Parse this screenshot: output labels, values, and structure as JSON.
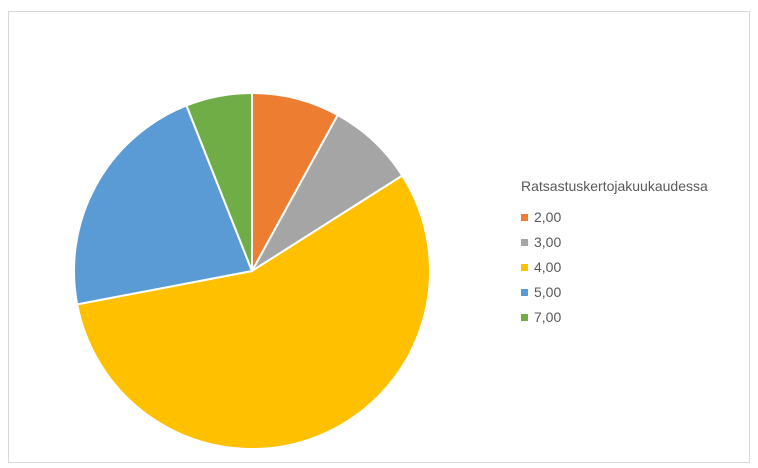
{
  "chart_data": {
    "type": "pie",
    "title": "",
    "legend_title": "Ratsastuskertojakuukaudessa",
    "legend_position": "right",
    "categories": [
      "2,00",
      "3,00",
      "4,00",
      "5,00",
      "7,00"
    ],
    "values": [
      8,
      8,
      56,
      22,
      6
    ],
    "colors": [
      "#ED7D31",
      "#A5A5A5",
      "#FFC000",
      "#5B9BD5",
      "#70AD47"
    ]
  }
}
